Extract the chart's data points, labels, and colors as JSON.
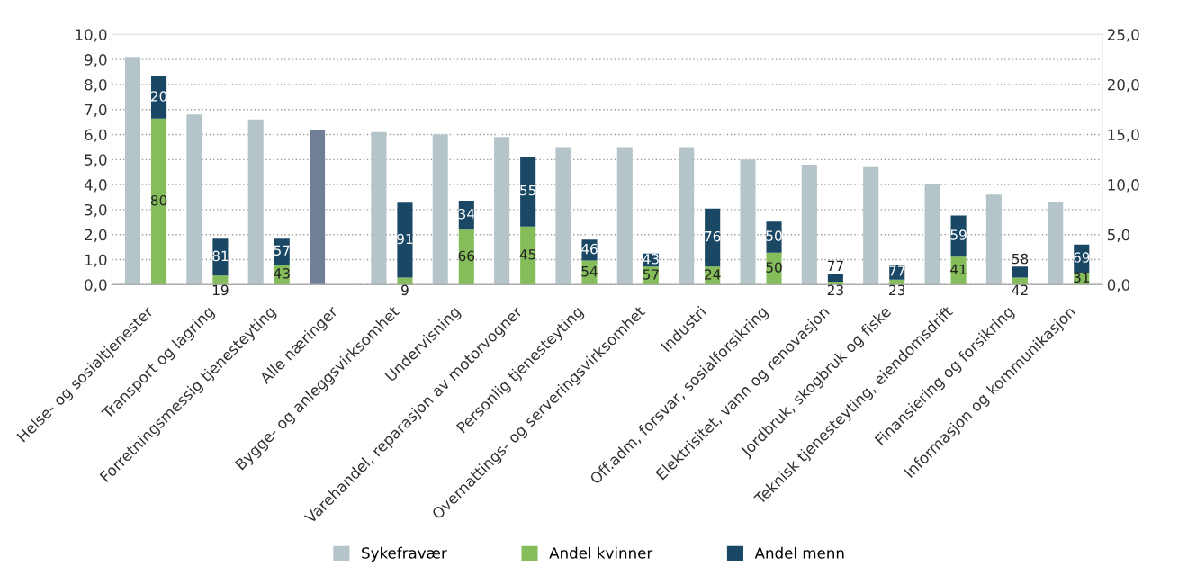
{
  "chart_data": {
    "type": "bar",
    "categories": [
      "Helse- og sosialtjenester",
      "Transport og lagring",
      "Forretningsmessig tjenesteyting",
      "Alle næringer",
      "Bygge- og anleggsvirksomhet",
      "Undervisning",
      "Varehandel, reparasjon av motorvogner",
      "Personlig tjenesteyting",
      "Overnattings- og serveringsvirksomhet",
      "Industri",
      "Off.adm, forsvar, sosialforsikring",
      "Elektrisitet, vann og renovasjon",
      "Jordbruk, skogbruk og fiske",
      "Teknisk tjenesteyting, eiendomsdrift",
      "Finansiering og forsikring",
      "Informasjon og kommunikasjon"
    ],
    "series": [
      {
        "name": "Sykefravær",
        "color": "#b4c4c9",
        "colors": [
          "#b4c4c9",
          "#b4c4c9",
          "#b4c4c9",
          "#717f96",
          "#b4c4c9",
          "#b4c4c9",
          "#b4c4c9",
          "#b4c4c9",
          "#b4c4c9",
          "#b4c4c9",
          "#b4c4c9",
          "#b4c4c9",
          "#b4c4c9",
          "#b4c4c9",
          "#b4c4c9",
          "#b4c4c9"
        ],
        "values": [
          9.1,
          6.8,
          6.6,
          6.2,
          6.1,
          6.0,
          5.9,
          5.5,
          5.5,
          5.5,
          5.0,
          4.8,
          4.7,
          4.0,
          3.6,
          3.3
        ]
      },
      {
        "name": "Andel kvinner",
        "color": "#84bd5a",
        "axis": "y2",
        "values": [
          16.6,
          0.9,
          2.0,
          null,
          0.7,
          5.5,
          5.8,
          2.4,
          1.8,
          1.8,
          3.2,
          0.3,
          0.5,
          2.8,
          0.7,
          1.2
        ]
      },
      {
        "name": "Andel menn",
        "color": "#194764",
        "axis": "y2",
        "values": [
          4.2,
          3.7,
          2.6,
          null,
          7.5,
          2.9,
          7.0,
          2.1,
          1.3,
          5.8,
          3.1,
          0.8,
          1.5,
          4.1,
          1.1,
          2.8
        ]
      }
    ],
    "annotations": [
      "80",
      "20",
      "19",
      "81",
      "43",
      "57",
      "9",
      "91",
      "66",
      "34",
      "45",
      "55",
      "54",
      "46",
      "57",
      "43",
      "24",
      "76",
      "50",
      "50",
      "23",
      "77",
      "23",
      "77",
      "41",
      "59",
      "42",
      "58",
      "31",
      "69"
    ],
    "stacked": true,
    "ylim": [
      0,
      10
    ],
    "yticks": [
      {
        "value": 0,
        "label": "0,0"
      },
      {
        "value": 1,
        "label": "1,0"
      },
      {
        "value": 2,
        "label": "2,0"
      },
      {
        "value": 3,
        "label": "3,0"
      },
      {
        "value": 4,
        "label": "4,0"
      },
      {
        "value": 5,
        "label": "5,0"
      },
      {
        "value": 6,
        "label": "6,0"
      },
      {
        "value": 7,
        "label": "7,0"
      },
      {
        "value": 8,
        "label": "8,0"
      },
      {
        "value": 9,
        "label": "9,0"
      },
      {
        "value": 10,
        "label": "10,0"
      }
    ],
    "y2lim": [
      0,
      25
    ],
    "y2ticks": [
      {
        "value": 0,
        "label": "0,0"
      },
      {
        "value": 5,
        "label": "5,0"
      },
      {
        "value": 10,
        "label": "10,0"
      },
      {
        "value": 15,
        "label": "15,0"
      },
      {
        "value": 20,
        "label": "20,0"
      },
      {
        "value": 25,
        "label": "25,0"
      }
    ],
    "grid": "y",
    "legend": "bottom"
  }
}
